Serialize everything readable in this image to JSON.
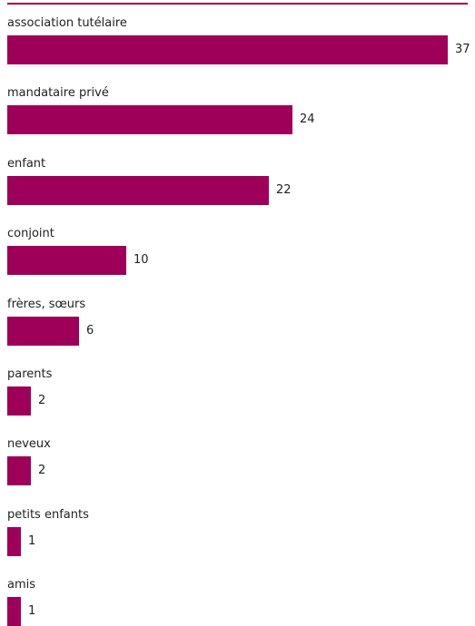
{
  "chart_data": {
    "type": "bar",
    "orientation": "horizontal",
    "categories": [
      "association tutélaire",
      "mandataire privé",
      "enfant",
      "conjoint",
      "frères, sœurs",
      "parents",
      "neveux",
      "petits enfants",
      "amis"
    ],
    "values": [
      37,
      24,
      22,
      10,
      6,
      2,
      2,
      1,
      1
    ],
    "data_labels": [
      "37",
      "24",
      "22",
      "10",
      "6",
      "2",
      "2",
      "1",
      "1"
    ],
    "title": "",
    "xlabel": "",
    "ylabel": "",
    "grid": false,
    "legend": "none"
  },
  "colors": {
    "bar": "#9e0059",
    "top_rule": "#9e0059"
  }
}
